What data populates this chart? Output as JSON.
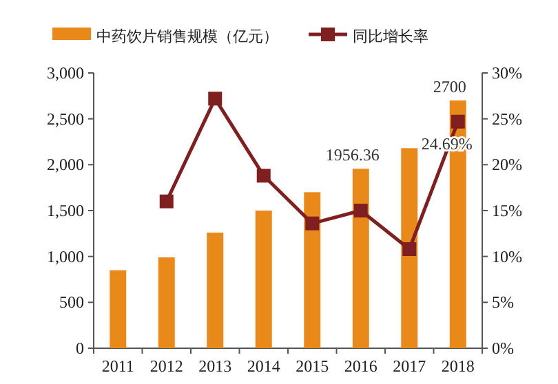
{
  "chart_data": {
    "type": "bar",
    "categories": [
      "2011",
      "2012",
      "2013",
      "2014",
      "2015",
      "2016",
      "2017",
      "2018"
    ],
    "series": [
      {
        "name": "中药饮片销售规模（亿元）",
        "color": "#e8891a",
        "values": [
          850,
          990,
          1260,
          1500,
          1700,
          1956.36,
          2180,
          2700
        ],
        "value_labels": [
          null,
          null,
          null,
          null,
          null,
          "1956.36",
          null,
          "2700"
        ]
      },
      {
        "name": "同比增长率",
        "type": "line",
        "axis": "y2",
        "color": "#7f1f1f",
        "marker": "square",
        "values": [
          null,
          16.0,
          27.2,
          18.8,
          13.6,
          15.0,
          10.8,
          24.69
        ],
        "value_labels": [
          null,
          null,
          null,
          null,
          null,
          null,
          null,
          "24.69%"
        ]
      }
    ],
    "ylim": [
      0,
      3000
    ],
    "yticks": [
      {
        "value": 0,
        "label": "0"
      },
      {
        "value": 500,
        "label": "500"
      },
      {
        "value": 1000,
        "label": "1,000"
      },
      {
        "value": 1500,
        "label": "1,500"
      },
      {
        "value": 2000,
        "label": "2,000"
      },
      {
        "value": 2500,
        "label": "2,500"
      },
      {
        "value": 3000,
        "label": "3,000"
      }
    ],
    "y2lim": [
      0,
      30
    ],
    "y2ticks": [
      {
        "value": 0,
        "label": "0%"
      },
      {
        "value": 5,
        "label": "5%"
      },
      {
        "value": 10,
        "label": "10%"
      },
      {
        "value": 15,
        "label": "15%"
      },
      {
        "value": 20,
        "label": "20%"
      },
      {
        "value": 25,
        "label": "25%"
      },
      {
        "value": 30,
        "label": "30%"
      }
    ],
    "grid": false,
    "legend": "top"
  }
}
